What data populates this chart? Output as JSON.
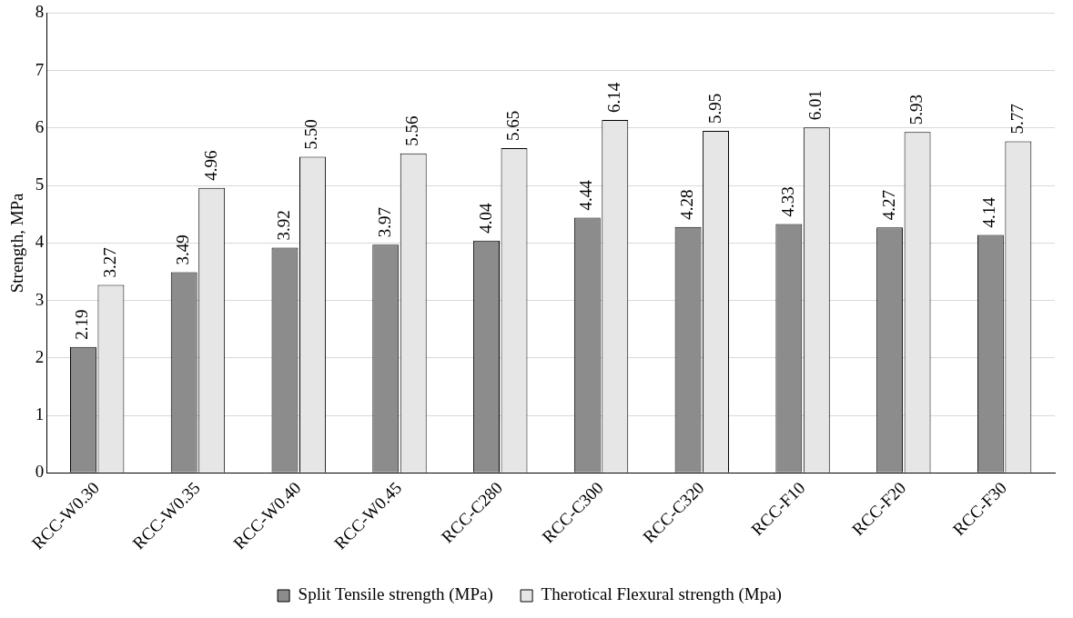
{
  "chart_data": {
    "type": "bar",
    "ylabel": "Strength, MPa",
    "categories": [
      "RCC-W0.30",
      "RCC-W0.35",
      "RCC-W0.40",
      "RCC-W0.45",
      "RCC-C280",
      "RCC-C300",
      "RCC-C320",
      "RCC-F10",
      "RCC-F20",
      "RCC-F30"
    ],
    "series": [
      {
        "name": "Split Tensile strength (MPa)",
        "color": "#8c8c8c",
        "values": [
          2.19,
          3.49,
          3.92,
          3.97,
          4.04,
          4.44,
          4.28,
          4.33,
          4.27,
          4.14
        ],
        "value_labels": [
          "2.19",
          "3.49",
          "3.92",
          "3.97",
          "4.04",
          "4.44",
          "4.28",
          "4.33",
          "4.27",
          "4.14"
        ]
      },
      {
        "name": "Therotical Flexural strength (Mpa)",
        "color": "#e6e6e6",
        "values": [
          3.27,
          4.96,
          5.5,
          5.56,
          5.65,
          6.14,
          5.95,
          6.01,
          5.93,
          5.77
        ],
        "value_labels": [
          "3.27",
          "4.96",
          "5.50",
          "5.56",
          "5.65",
          "6.14",
          "5.95",
          "6.01",
          "5.93",
          "5.77"
        ]
      }
    ],
    "ylim": [
      0,
      8
    ],
    "yticks": [
      0,
      1,
      2,
      3,
      4,
      5,
      6,
      7,
      8
    ],
    "grid": "y",
    "legend": "bottom"
  }
}
